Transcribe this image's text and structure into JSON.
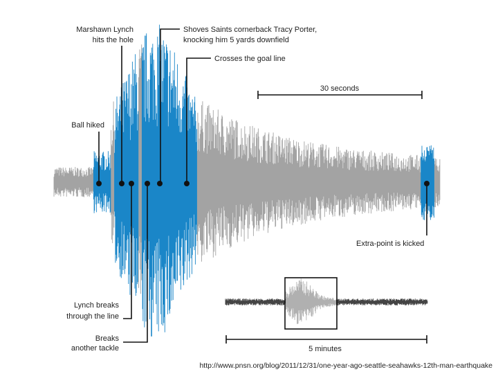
{
  "annotations": {
    "hits_hole": [
      "Marshawn Lynch",
      "hits the hole"
    ],
    "shoves": [
      "Shoves Saints cornerback Tracy Porter,",
      "knocking him 5 yards downfield"
    ],
    "goal_line": [
      "Crosses the goal line"
    ],
    "ball_hiked": [
      "Ball hiked"
    ],
    "breaks_line": [
      "Lynch breaks",
      "through the line"
    ],
    "breaks_tackle": [
      "Breaks",
      "another tackle"
    ],
    "extra_point": [
      "Extra-point is kicked"
    ]
  },
  "scale_main": "30 seconds",
  "scale_inset": "5 minutes",
  "source_url": "http://www.pnsn.org/blog/2011/12/31/one-year-ago-seattle-seahawks-12th-man-earthquake"
}
